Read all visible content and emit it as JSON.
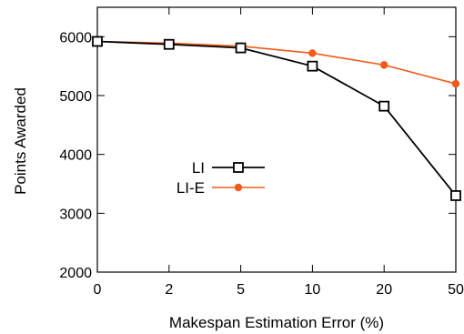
{
  "chart_data": {
    "type": "line",
    "xlabel": "Makespan Estimation Error (%)",
    "ylabel": "Points Awarded",
    "categories": [
      "0",
      "2",
      "5",
      "10",
      "20",
      "50"
    ],
    "ylim": [
      2000,
      6500
    ],
    "yticks": [
      2000,
      3000,
      4000,
      5000,
      6000
    ],
    "grid": false,
    "legend": "center-left",
    "series": [
      {
        "name": "LI",
        "color": "#000000",
        "marker": "open-square",
        "values": [
          5920,
          5870,
          5810,
          5500,
          4820,
          3300
        ]
      },
      {
        "name": "LI-E",
        "color": "#f25a1a",
        "marker": "filled-circle",
        "values": [
          5920,
          5890,
          5840,
          5720,
          5520,
          5200
        ]
      }
    ]
  }
}
